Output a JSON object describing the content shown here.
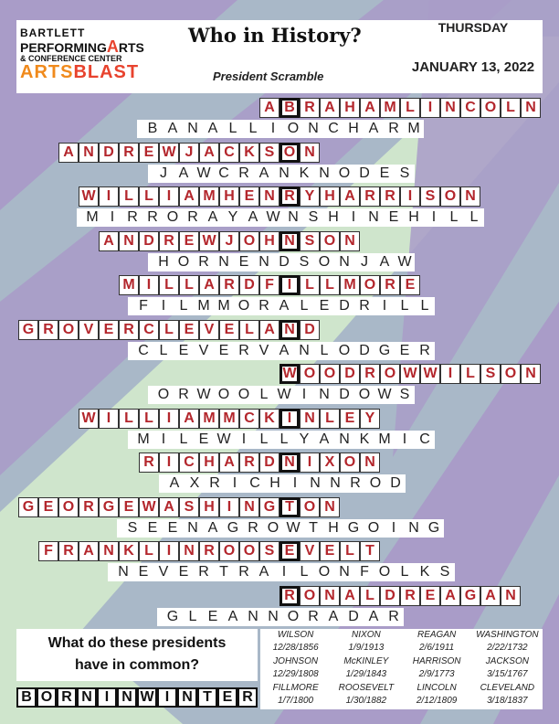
{
  "header": {
    "logo": {
      "line1": "BARTLETT",
      "line2a": "PERFORMING",
      "line2b": "A",
      "line2c": "RTS",
      "line3": "& CONFERENCE CENTER",
      "line4a": "ARTS",
      "line4b": "BLAST"
    },
    "title": "Who in History?",
    "subtitle": "President Scramble",
    "day": "THURSDAY",
    "date": "JANUARY 13, 2022"
  },
  "colors": {
    "answer_letter": "#b3262c",
    "stripe_purple": "#a99cc8",
    "stripe_blue": "#a9b8c8",
    "stripe_green": "#cfe5cc"
  },
  "puzzles": [
    {
      "answer": "ABRAHAMLINCOLN",
      "highlight_index": 1,
      "scramble": "BANALLIONCHARM"
    },
    {
      "answer": "ANDREWJACKSON",
      "highlight_index": 11,
      "scramble": "JAWCRANKNODES"
    },
    {
      "answer": "WILLIAMHENRYHARRISON",
      "highlight_index": 10,
      "scramble": "MIRRORAYAWNSHINEHILL"
    },
    {
      "answer": "ANDREWJOHNSON",
      "highlight_index": 9,
      "scramble": "HORNENDSONJAW"
    },
    {
      "answer": "MILLARDFILLMORE",
      "highlight_index": 8,
      "scramble": "FILMMORALEDRILL"
    },
    {
      "answer": "GROVERCLEVELAND",
      "highlight_index": 13,
      "scramble": "CLEVERVANLODGER"
    },
    {
      "answer": "WOODROWWILSON",
      "highlight_index": 0,
      "scramble": "ORWOOLWINDOWS"
    },
    {
      "answer": "WILLIAMMCKINLEY",
      "highlight_index": 10,
      "scramble": "MILEWILLYANKMIC"
    },
    {
      "answer": "RICHARDNIXON",
      "highlight_index": 7,
      "scramble": "AXRICHINNROD"
    },
    {
      "answer": "GEORGEWASHINGTON",
      "highlight_index": 13,
      "scramble": "SEENAGROWTHGOING"
    },
    {
      "answer": "FRANKLINROOSEVELT",
      "highlight_index": 12,
      "scramble": "NEVERTRAILONFOLKS"
    },
    {
      "answer": "RONALDREAGAN",
      "highlight_index": 0,
      "scramble": "GLEANNORADAR"
    }
  ],
  "bottom": {
    "question_line1": "What do these presidents",
    "question_line2": "have in common?",
    "final_answer": "BORNINWINTER",
    "birthdays": [
      {
        "name": "WILSON",
        "date": "12/28/1856"
      },
      {
        "name": "NIXON",
        "date": "1/9/1913"
      },
      {
        "name": "REAGAN",
        "date": "2/6/1911"
      },
      {
        "name": "WASHINGTON",
        "date": "2/22/1732"
      },
      {
        "name": "JOHNSON",
        "date": "12/29/1808"
      },
      {
        "name": "McKINLEY",
        "date": "1/29/1843"
      },
      {
        "name": "HARRISON",
        "date": "2/9/1773"
      },
      {
        "name": "JACKSON",
        "date": "3/15/1767"
      },
      {
        "name": "FILLMORE",
        "date": "1/7/1800"
      },
      {
        "name": "ROOSEVELT",
        "date": "1/30/1882"
      },
      {
        "name": "LINCOLN",
        "date": "2/12/1809"
      },
      {
        "name": "CLEVELAND",
        "date": "3/18/1837"
      }
    ]
  }
}
